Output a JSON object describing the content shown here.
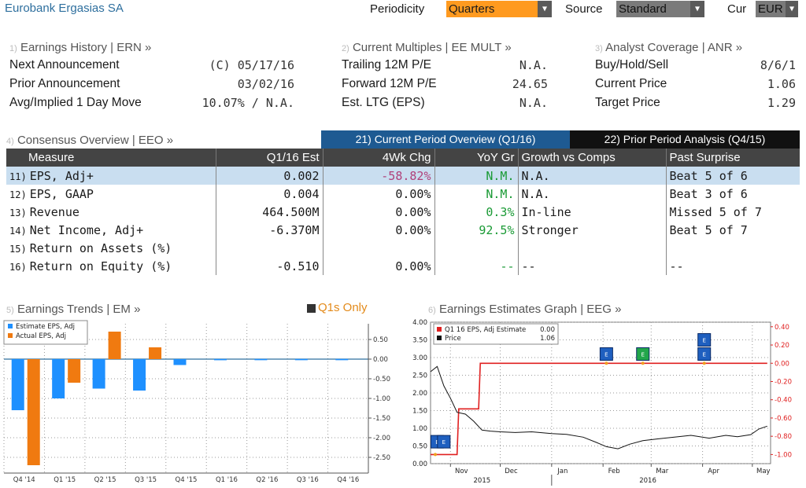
{
  "header": {
    "company": "Eurobank Ergasias SA",
    "periodicity_label": "Periodicity",
    "periodicity_value": "Quarters",
    "source_label": "Source",
    "source_value": "Standard",
    "currency_label": "Cur",
    "currency_value": "EUR",
    "colors": {
      "periodicity_bg": "#ff9a1f",
      "source_bg": "#7a7a7a",
      "currency_bg": "#7a7a7a"
    }
  },
  "earnings_history": {
    "number": "1)",
    "title": "Earnings History | ERN »",
    "rows": [
      {
        "label": "Next Announcement",
        "value": "(C) 05/17/16"
      },
      {
        "label": "Prior Announcement",
        "value": "03/02/16"
      },
      {
        "label": "Avg/Implied 1 Day Move",
        "value": "10.07% / N.A."
      }
    ]
  },
  "current_multiples": {
    "number": "2)",
    "title": "Current Multiples | EE MULT »",
    "rows": [
      {
        "label": "Trailing 12M P/E",
        "value": "N.A."
      },
      {
        "label": "Forward 12M P/E",
        "value": "24.65"
      },
      {
        "label": "Est. LTG (EPS)",
        "value": "N.A."
      }
    ]
  },
  "analyst_coverage": {
    "number": "3)",
    "title": "Analyst Coverage | ANR »",
    "rows": [
      {
        "label": "Buy/Hold/Sell",
        "value": "8/6/1"
      },
      {
        "label": "Current Price",
        "value": "1.06"
      },
      {
        "label": "Target Price",
        "value": "1.29"
      }
    ]
  },
  "consensus": {
    "number": "4)",
    "title": "Consensus Overview | EEO »",
    "tab_current": "21) Current Period Overview (Q1/16)",
    "tab_prior": "22) Prior Period Analysis (Q4/15)",
    "headers": [
      "Measure",
      "Q1/16 Est",
      "4Wk Chg",
      "YoY Gr",
      "Growth vs Comps",
      "Past Surprise"
    ],
    "rows": [
      {
        "num": "11)",
        "measure": "EPS, Adj+",
        "est": "0.002",
        "chg": "-58.82%",
        "yoy": "N.M.",
        "growth": "N.A.",
        "surprise": "Beat 5 of 6"
      },
      {
        "num": "12)",
        "measure": "EPS, GAAP",
        "est": "0.004",
        "chg": "0.00%",
        "yoy": "N.M.",
        "growth": "N.A.",
        "surprise": "Beat 3 of 6"
      },
      {
        "num": "13)",
        "measure": "Revenue",
        "est": "464.500M",
        "chg": "0.00%",
        "yoy": "0.3%",
        "growth": "In-line",
        "surprise": "Missed 5 of 7"
      },
      {
        "num": "14)",
        "measure": "Net Income, Adj+",
        "est": "-6.370M",
        "chg": "0.00%",
        "yoy": "92.5%",
        "growth": "Stronger",
        "surprise": "Beat 5 of 7"
      },
      {
        "num": "15)",
        "measure": "Return on Assets (%)",
        "est": "",
        "chg": "",
        "yoy": "",
        "growth": "",
        "surprise": ""
      },
      {
        "num": "16)",
        "measure": "Return on Equity (%)",
        "est": "-0.510",
        "chg": "0.00%",
        "yoy": "--",
        "growth": "--",
        "surprise": "--"
      }
    ]
  },
  "earnings_trends": {
    "number": "5)",
    "title": "Earnings Trends | EM »",
    "toggle_label": "Q1s Only"
  },
  "estimates_graph": {
    "number": "6)",
    "title": "Earnings Estimates Graph | EEG »"
  },
  "chart_data": [
    {
      "type": "bar",
      "categories": [
        "Q4 '14",
        "Q1 '15",
        "Q2 '15",
        "Q3 '15",
        "Q4 '15",
        "Q1 '16",
        "Q2 '16",
        "Q3 '16",
        "Q4 '16"
      ],
      "series": [
        {
          "name": "Estimate EPS, Adj",
          "color": "#1e90ff",
          "values": [
            -1.3,
            -1.0,
            -0.75,
            -0.8,
            -0.15,
            0.002,
            0.003,
            0.003,
            0.003
          ]
        },
        {
          "name": "Actual EPS, Adj",
          "color": "#f07a10",
          "values": [
            -2.7,
            -0.6,
            0.7,
            0.3,
            null,
            null,
            null,
            null,
            null
          ]
        }
      ],
      "yticks": [
        "0.50",
        "0.00",
        "-0.50",
        "-1.00",
        "-1.50",
        "-2.00",
        "-2.50"
      ],
      "ylim": [
        -2.9,
        0.9
      ],
      "legend_position": "top-left",
      "grid": true
    },
    {
      "type": "line",
      "x_tick_labels": [
        "Nov",
        "Dec",
        "Jan",
        "Feb",
        "Mar",
        "Apr",
        "May"
      ],
      "x_year_labels": [
        "2015",
        "2016"
      ],
      "left_axis_ticks": [
        "4.00",
        "3.50",
        "3.00",
        "2.50",
        "2.00",
        "1.50",
        "1.00",
        "0.50",
        "0.00"
      ],
      "right_axis_ticks": [
        "0.40",
        "0.20",
        "0.00",
        "-0.20",
        "-0.40",
        "-0.60",
        "-0.80",
        "-1.00"
      ],
      "ylim_left": [
        0,
        4
      ],
      "ylim_right": [
        -1.1,
        0.45
      ],
      "legend_position": "top-left",
      "grid": true,
      "series": [
        {
          "name": "Q1 16 EPS, Adj Estimate",
          "legend_value": "0.00",
          "axis": "right",
          "color": "#e02020",
          "x": [
            "2015-10-20",
            "2015-11-05",
            "2015-11-06",
            "2015-11-18",
            "2015-11-19",
            "2016-05-10"
          ],
          "y": [
            -1.0,
            -1.0,
            -0.5,
            -0.5,
            0.0,
            0.0
          ]
        },
        {
          "name": "Price",
          "legend_value": "1.06",
          "axis": "left",
          "color": "#111111",
          "x": [
            "2015-10-20",
            "2015-10-24",
            "2015-10-28",
            "2015-11-01",
            "2015-11-05",
            "2015-11-10",
            "2015-11-15",
            "2015-11-20",
            "2015-11-25",
            "2015-12-01",
            "2015-12-10",
            "2015-12-20",
            "2016-01-01",
            "2016-01-10",
            "2016-01-20",
            "2016-01-28",
            "2016-02-03",
            "2016-02-10",
            "2016-02-17",
            "2016-02-25",
            "2016-03-05",
            "2016-03-15",
            "2016-03-25",
            "2016-04-05",
            "2016-04-15",
            "2016-04-22",
            "2016-04-30",
            "2016-05-05",
            "2016-05-10"
          ],
          "y": [
            2.6,
            2.75,
            2.2,
            1.85,
            1.45,
            1.4,
            1.2,
            0.95,
            0.92,
            0.9,
            0.88,
            0.9,
            0.85,
            0.83,
            0.75,
            0.6,
            0.48,
            0.42,
            0.55,
            0.65,
            0.7,
            0.75,
            0.8,
            0.72,
            0.8,
            0.76,
            0.82,
            0.98,
            1.06
          ]
        }
      ],
      "markers": [
        {
          "label": "E",
          "date": "2015-10-24",
          "color": "#1f5fbf"
        },
        {
          "label": "E",
          "date": "2015-10-28",
          "color": "#1f5fbf"
        },
        {
          "label": "E",
          "date": "2016-02-03",
          "color": "#1f5fbf"
        },
        {
          "label": "E",
          "date": "2016-02-25",
          "color": "#22a64a"
        },
        {
          "label": "E",
          "date": "2016-04-02",
          "color": "#1f5fbf"
        },
        {
          "label": "E",
          "date": "2016-04-02",
          "color": "#1f5fbf"
        }
      ]
    }
  ]
}
